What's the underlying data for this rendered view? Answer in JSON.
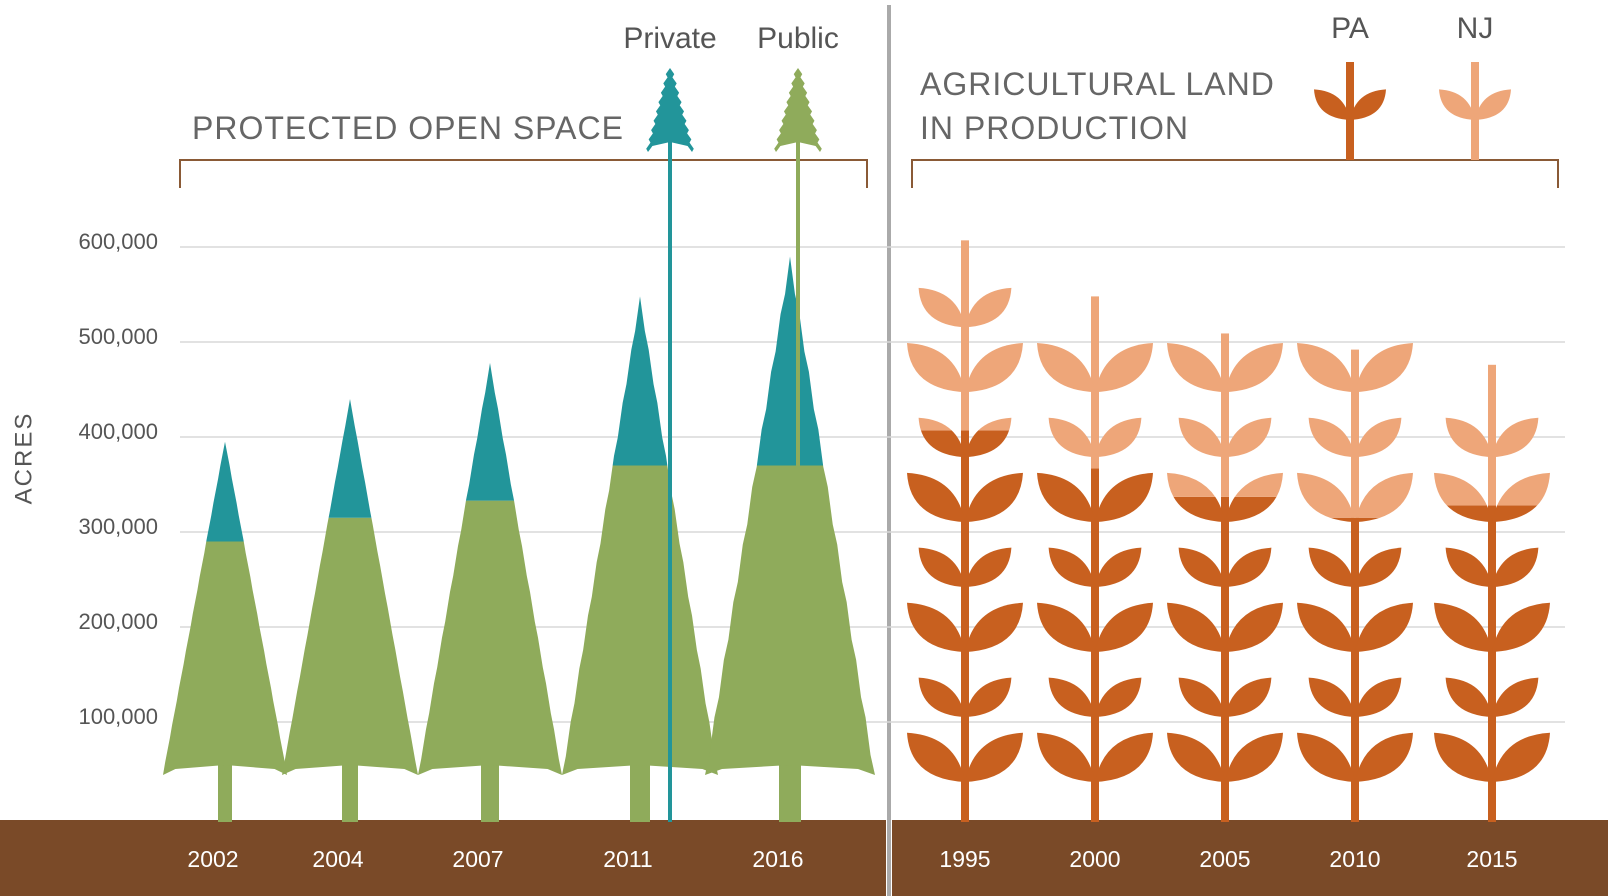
{
  "chart_data": [
    {
      "type": "tree",
      "title": "PROTECTED OPEN SPACE",
      "ylabel": "ACRES",
      "categories": [
        "2002",
        "2004",
        "2007",
        "2011",
        "2016"
      ],
      "series": [
        {
          "name": "Public",
          "color": "#8fab5b",
          "values": [
            290000,
            315000,
            333000,
            370000,
            370000
          ]
        },
        {
          "name": "Private",
          "color": "#22959a",
          "values": [
            105000,
            125000,
            145000,
            178000,
            220000
          ]
        }
      ],
      "ylim": [
        0,
        600000
      ],
      "yticks": [
        {
          "value": 100000,
          "label": "100,000"
        },
        {
          "value": 200000,
          "label": "200,000"
        },
        {
          "value": 300000,
          "label": "300,000"
        },
        {
          "value": 400000,
          "label": "400,000"
        },
        {
          "value": 500000,
          "label": "500,000"
        },
        {
          "value": 600000,
          "label": "600,000"
        }
      ],
      "grid": true
    },
    {
      "type": "wheat",
      "title": "AGRICULTURAL LAND IN PRODUCTION",
      "categories": [
        "1995",
        "2000",
        "2005",
        "2010",
        "2015"
      ],
      "series": [
        {
          "name": "PA",
          "color": "#c8601f",
          "values": [
            407000,
            367000,
            337000,
            315000,
            328000
          ]
        },
        {
          "name": "NJ",
          "color": "#eea679",
          "values": [
            200000,
            181000,
            172000,
            177000,
            148000
          ]
        }
      ],
      "ylim": [
        0,
        600000
      ]
    }
  ]
}
